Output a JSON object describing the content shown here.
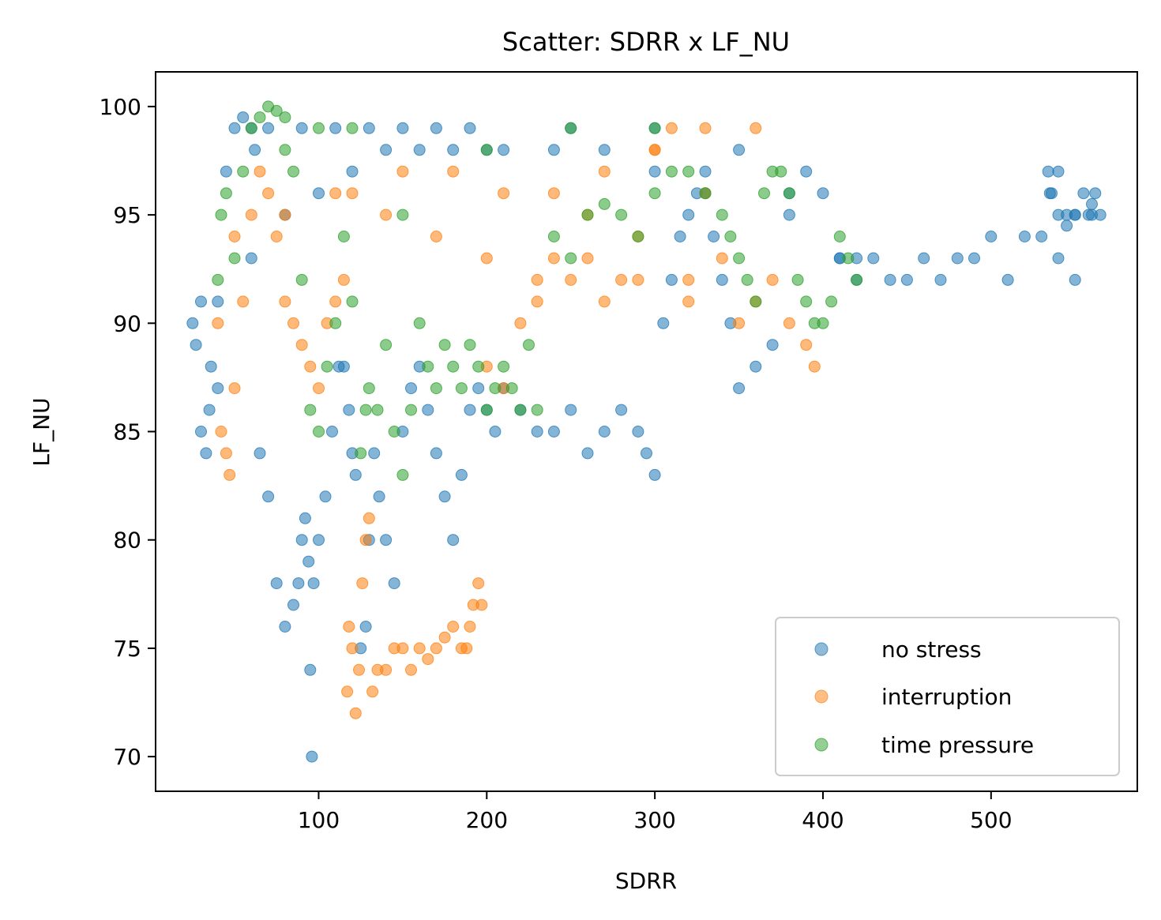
{
  "chart_data": {
    "type": "scatter",
    "title": "Scatter: SDRR x LF_NU",
    "xlabel": "SDRR",
    "ylabel": "LF_NU",
    "xlim": [
      3,
      587
    ],
    "ylim": [
      68.4,
      101.6
    ],
    "xticks": [
      100,
      200,
      300,
      400,
      500
    ],
    "yticks": [
      70,
      75,
      80,
      85,
      90,
      95,
      100
    ],
    "grid": false,
    "legend_position": "lower right",
    "series": [
      {
        "name": "no stress",
        "color": "#1f77b4",
        "x": [
          25,
          27,
          30,
          33,
          36,
          40,
          45,
          50,
          55,
          60,
          62,
          65,
          70,
          75,
          80,
          85,
          88,
          90,
          92,
          94,
          95,
          96,
          97,
          100,
          104,
          108,
          112,
          115,
          118,
          120,
          122,
          125,
          128,
          130,
          133,
          136,
          140,
          145,
          150,
          155,
          160,
          165,
          170,
          175,
          180,
          185,
          190,
          195,
          200,
          205,
          210,
          220,
          230,
          240,
          250,
          260,
          270,
          280,
          290,
          295,
          300,
          305,
          310,
          315,
          320,
          325,
          330,
          335,
          340,
          345,
          350,
          360,
          370,
          380,
          390,
          400,
          410,
          420,
          430,
          440,
          450,
          460,
          470,
          480,
          490,
          500,
          510,
          520,
          530,
          535,
          540,
          545,
          550,
          555,
          560,
          562,
          565,
          560,
          550,
          545,
          540,
          536,
          534,
          540,
          550,
          558,
          30,
          35,
          40,
          60,
          80,
          100,
          120,
          140,
          160,
          180,
          200,
          250,
          300,
          350,
          70,
          90,
          110,
          130,
          150,
          170,
          190,
          210,
          240,
          270,
          300,
          330,
          380,
          410,
          420
        ],
        "y": [
          90,
          89,
          85,
          84,
          88,
          91,
          97,
          99,
          99.5,
          99,
          98,
          84,
          82,
          78,
          76,
          77,
          78,
          80,
          81,
          79,
          74,
          70,
          78,
          80,
          82,
          85,
          88,
          88,
          86,
          84,
          83,
          75,
          76,
          80,
          84,
          82,
          80,
          78,
          85,
          87,
          88,
          86,
          84,
          82,
          80,
          83,
          86,
          87,
          86,
          85,
          87,
          86,
          85,
          85,
          86,
          84,
          85,
          86,
          85,
          84,
          83,
          90,
          92,
          94,
          95,
          96,
          97,
          94,
          92,
          90,
          87,
          88,
          89,
          96,
          97,
          96,
          93,
          93,
          93,
          92,
          92,
          93,
          92,
          93,
          93,
          94,
          92,
          94,
          94,
          96,
          97,
          95,
          95,
          96,
          95,
          96,
          95,
          95.5,
          95,
          94.5,
          95,
          96,
          97,
          93,
          92,
          95,
          91,
          86,
          87,
          93,
          95,
          96,
          97,
          98,
          98,
          98,
          98,
          99,
          99,
          98,
          99,
          99,
          99,
          99,
          99,
          99,
          99,
          98,
          98,
          98,
          97,
          96,
          95,
          93,
          92
        ]
      },
      {
        "name": "interruption",
        "color": "#ff7f0e",
        "x": [
          40,
          42,
          45,
          47,
          50,
          55,
          60,
          65,
          70,
          75,
          80,
          85,
          90,
          95,
          100,
          105,
          110,
          115,
          117,
          118,
          120,
          122,
          124,
          126,
          128,
          130,
          132,
          135,
          140,
          145,
          150,
          155,
          160,
          165,
          170,
          175,
          180,
          185,
          188,
          190,
          192,
          195,
          197,
          200,
          210,
          220,
          230,
          240,
          250,
          260,
          270,
          280,
          290,
          300,
          310,
          320,
          330,
          340,
          350,
          360,
          370,
          380,
          390,
          395,
          120,
          150,
          180,
          210,
          240,
          270,
          300,
          330,
          360,
          50,
          80,
          110,
          140,
          170,
          200,
          230,
          260,
          290,
          320
        ],
        "y": [
          90,
          85,
          84,
          83,
          87,
          91,
          95,
          97,
          96,
          94,
          91,
          90,
          89,
          88,
          87,
          90,
          91,
          92,
          73,
          76,
          75,
          72,
          74,
          78,
          80,
          81,
          73,
          74,
          74,
          75,
          75,
          74,
          75,
          74.5,
          75,
          75.5,
          76,
          75,
          75,
          76,
          77,
          78,
          77,
          88,
          87,
          90,
          91,
          93,
          92,
          95,
          91,
          92,
          94,
          98,
          99,
          92,
          96,
          93,
          90,
          91,
          92,
          90,
          89,
          88,
          96,
          97,
          97,
          96,
          96,
          97,
          98,
          99,
          99,
          94,
          95,
          96,
          95,
          94,
          93,
          92,
          93,
          92,
          91
        ]
      },
      {
        "name": "time pressure",
        "color": "#2ca02c",
        "x": [
          40,
          42,
          45,
          50,
          55,
          60,
          65,
          70,
          75,
          80,
          85,
          90,
          95,
          100,
          105,
          110,
          115,
          120,
          125,
          128,
          130,
          135,
          140,
          145,
          150,
          155,
          160,
          165,
          170,
          175,
          180,
          185,
          190,
          195,
          200,
          205,
          210,
          215,
          220,
          225,
          230,
          240,
          250,
          260,
          270,
          280,
          290,
          300,
          310,
          320,
          330,
          340,
          345,
          350,
          355,
          360,
          365,
          370,
          375,
          380,
          385,
          390,
          395,
          400,
          405,
          410,
          415,
          420,
          150,
          200,
          250,
          300,
          80,
          100,
          120
        ],
        "y": [
          92,
          95,
          96,
          93,
          97,
          99,
          99.5,
          100,
          99.8,
          99.5,
          97,
          92,
          86,
          85,
          88,
          90,
          94,
          91,
          84,
          86,
          87,
          86,
          89,
          85,
          83,
          86,
          90,
          88,
          87,
          89,
          88,
          87,
          89,
          88,
          86,
          87,
          88,
          87,
          86,
          89,
          86,
          94,
          93,
          95,
          95.5,
          95,
          94,
          96,
          97,
          97,
          96,
          95,
          94,
          93,
          92,
          91,
          96,
          97,
          97,
          96,
          92,
          91,
          90,
          90,
          91,
          94,
          93,
          92,
          95,
          98,
          99,
          99,
          98,
          99,
          99
        ]
      }
    ]
  }
}
